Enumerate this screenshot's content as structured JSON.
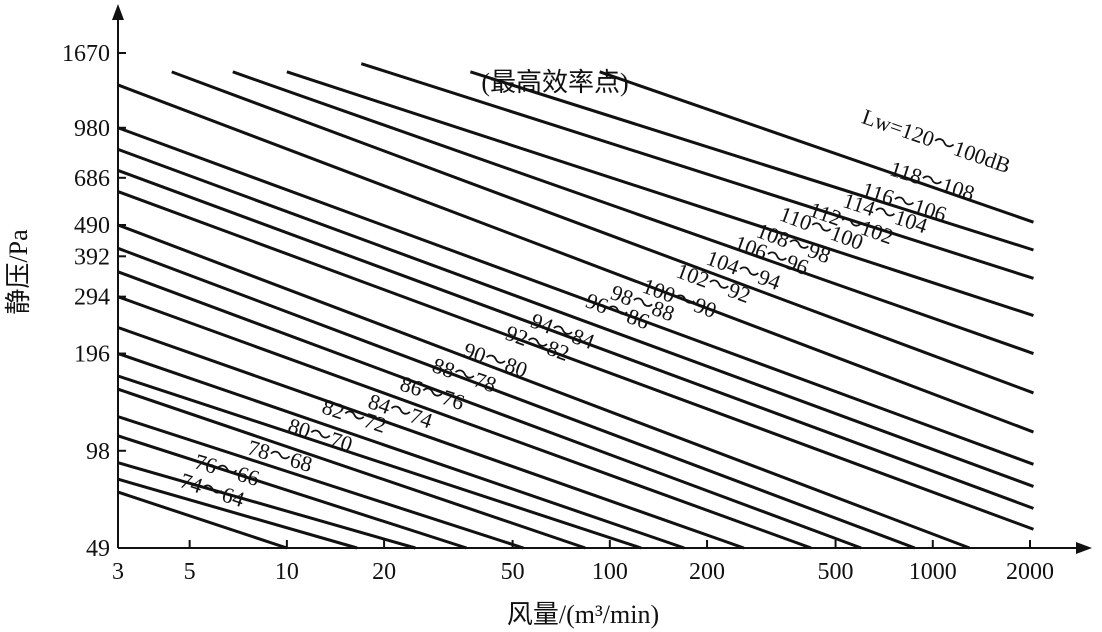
{
  "chart_data": {
    "type": "line",
    "xlabel": "风量/(m³/min)",
    "ylabel": "静压/Pa",
    "annotation": "(最高效率点)",
    "x_scale": "log",
    "y_scale": "log",
    "xlim": [
      3,
      2700
    ],
    "ylim": [
      49,
      1670
    ],
    "x_ticks": [
      3,
      5,
      10,
      20,
      50,
      100,
      200,
      500,
      1000,
      2000
    ],
    "x_tick_labels": [
      "3",
      "5",
      "10",
      "20",
      "50",
      "100",
      "200",
      "500",
      "1000",
      "2000"
    ],
    "y_ticks": [
      49,
      98,
      196,
      294,
      392,
      490,
      686,
      980,
      1670
    ],
    "y_tick_labels": [
      "49",
      "98",
      "196",
      "294",
      "392",
      "490",
      "686",
      "980",
      "1670"
    ],
    "series": [
      {
        "label": "74～64",
        "points": [
          [
            3,
            73
          ],
          [
            10,
            49
          ]
        ]
      },
      {
        "label": "76～66",
        "points": [
          [
            3,
            80
          ],
          [
            16.5,
            49
          ]
        ]
      },
      {
        "label": "78～68",
        "points": [
          [
            3,
            90
          ],
          [
            25,
            49
          ]
        ]
      },
      {
        "label": "80～70",
        "points": [
          [
            3,
            109
          ],
          [
            36,
            49
          ]
        ]
      },
      {
        "label": "82～72",
        "points": [
          [
            3,
            125
          ],
          [
            54,
            49
          ]
        ]
      },
      {
        "label": "84～74",
        "points": [
          [
            3,
            152
          ],
          [
            84,
            49
          ]
        ]
      },
      {
        "label": "86～76",
        "points": [
          [
            3,
            167
          ],
          [
            125,
            49
          ]
        ]
      },
      {
        "label": "88～78",
        "points": [
          [
            3,
            196
          ],
          [
            170,
            49
          ]
        ]
      },
      {
        "label": "90～80",
        "points": [
          [
            3,
            236
          ],
          [
            260,
            49
          ]
        ]
      },
      {
        "label": "92～82",
        "points": [
          [
            3,
            294
          ],
          [
            420,
            49
          ]
        ]
      },
      {
        "label": "94～84",
        "points": [
          [
            3,
            351
          ],
          [
            600,
            49
          ]
        ]
      },
      {
        "label": "96～86",
        "points": [
          [
            3,
            415
          ],
          [
            880,
            49
          ]
        ]
      },
      {
        "label": "98～88",
        "points": [
          [
            3,
            490
          ],
          [
            1300,
            49
          ]
        ]
      },
      {
        "label": "100～90",
        "points": [
          [
            3,
            622
          ],
          [
            2050,
            56
          ]
        ]
      },
      {
        "label": "102～92",
        "points": [
          [
            3,
            723
          ],
          [
            2050,
            65
          ]
        ]
      },
      {
        "label": "104～94",
        "points": [
          [
            3,
            840
          ],
          [
            2050,
            76
          ]
        ]
      },
      {
        "label": "106～96",
        "points": [
          [
            3,
            980
          ],
          [
            2050,
            89
          ]
        ]
      },
      {
        "label": "108～98",
        "points": [
          [
            3,
            1330
          ],
          [
            2050,
            112
          ]
        ]
      },
      {
        "label": "110～100",
        "points": [
          [
            4.4,
            1460
          ],
          [
            2050,
            148
          ]
        ]
      },
      {
        "label": "112～102",
        "points": [
          [
            6.8,
            1460
          ],
          [
            2050,
            196
          ]
        ]
      },
      {
        "label": "114～104",
        "points": [
          [
            10,
            1460
          ],
          [
            2050,
            257
          ]
        ]
      },
      {
        "label": "116～106",
        "points": [
          [
            17,
            1548
          ],
          [
            2050,
            335
          ]
        ]
      },
      {
        "label": "118～108",
        "points": [
          [
            37,
            1460
          ],
          [
            2050,
            410
          ]
        ]
      },
      {
        "label": "Lw=120～100dB",
        "points": [
          [
            93,
            1460
          ],
          [
            2050,
            500
          ]
        ]
      }
    ],
    "grid": false,
    "legend": "none"
  }
}
